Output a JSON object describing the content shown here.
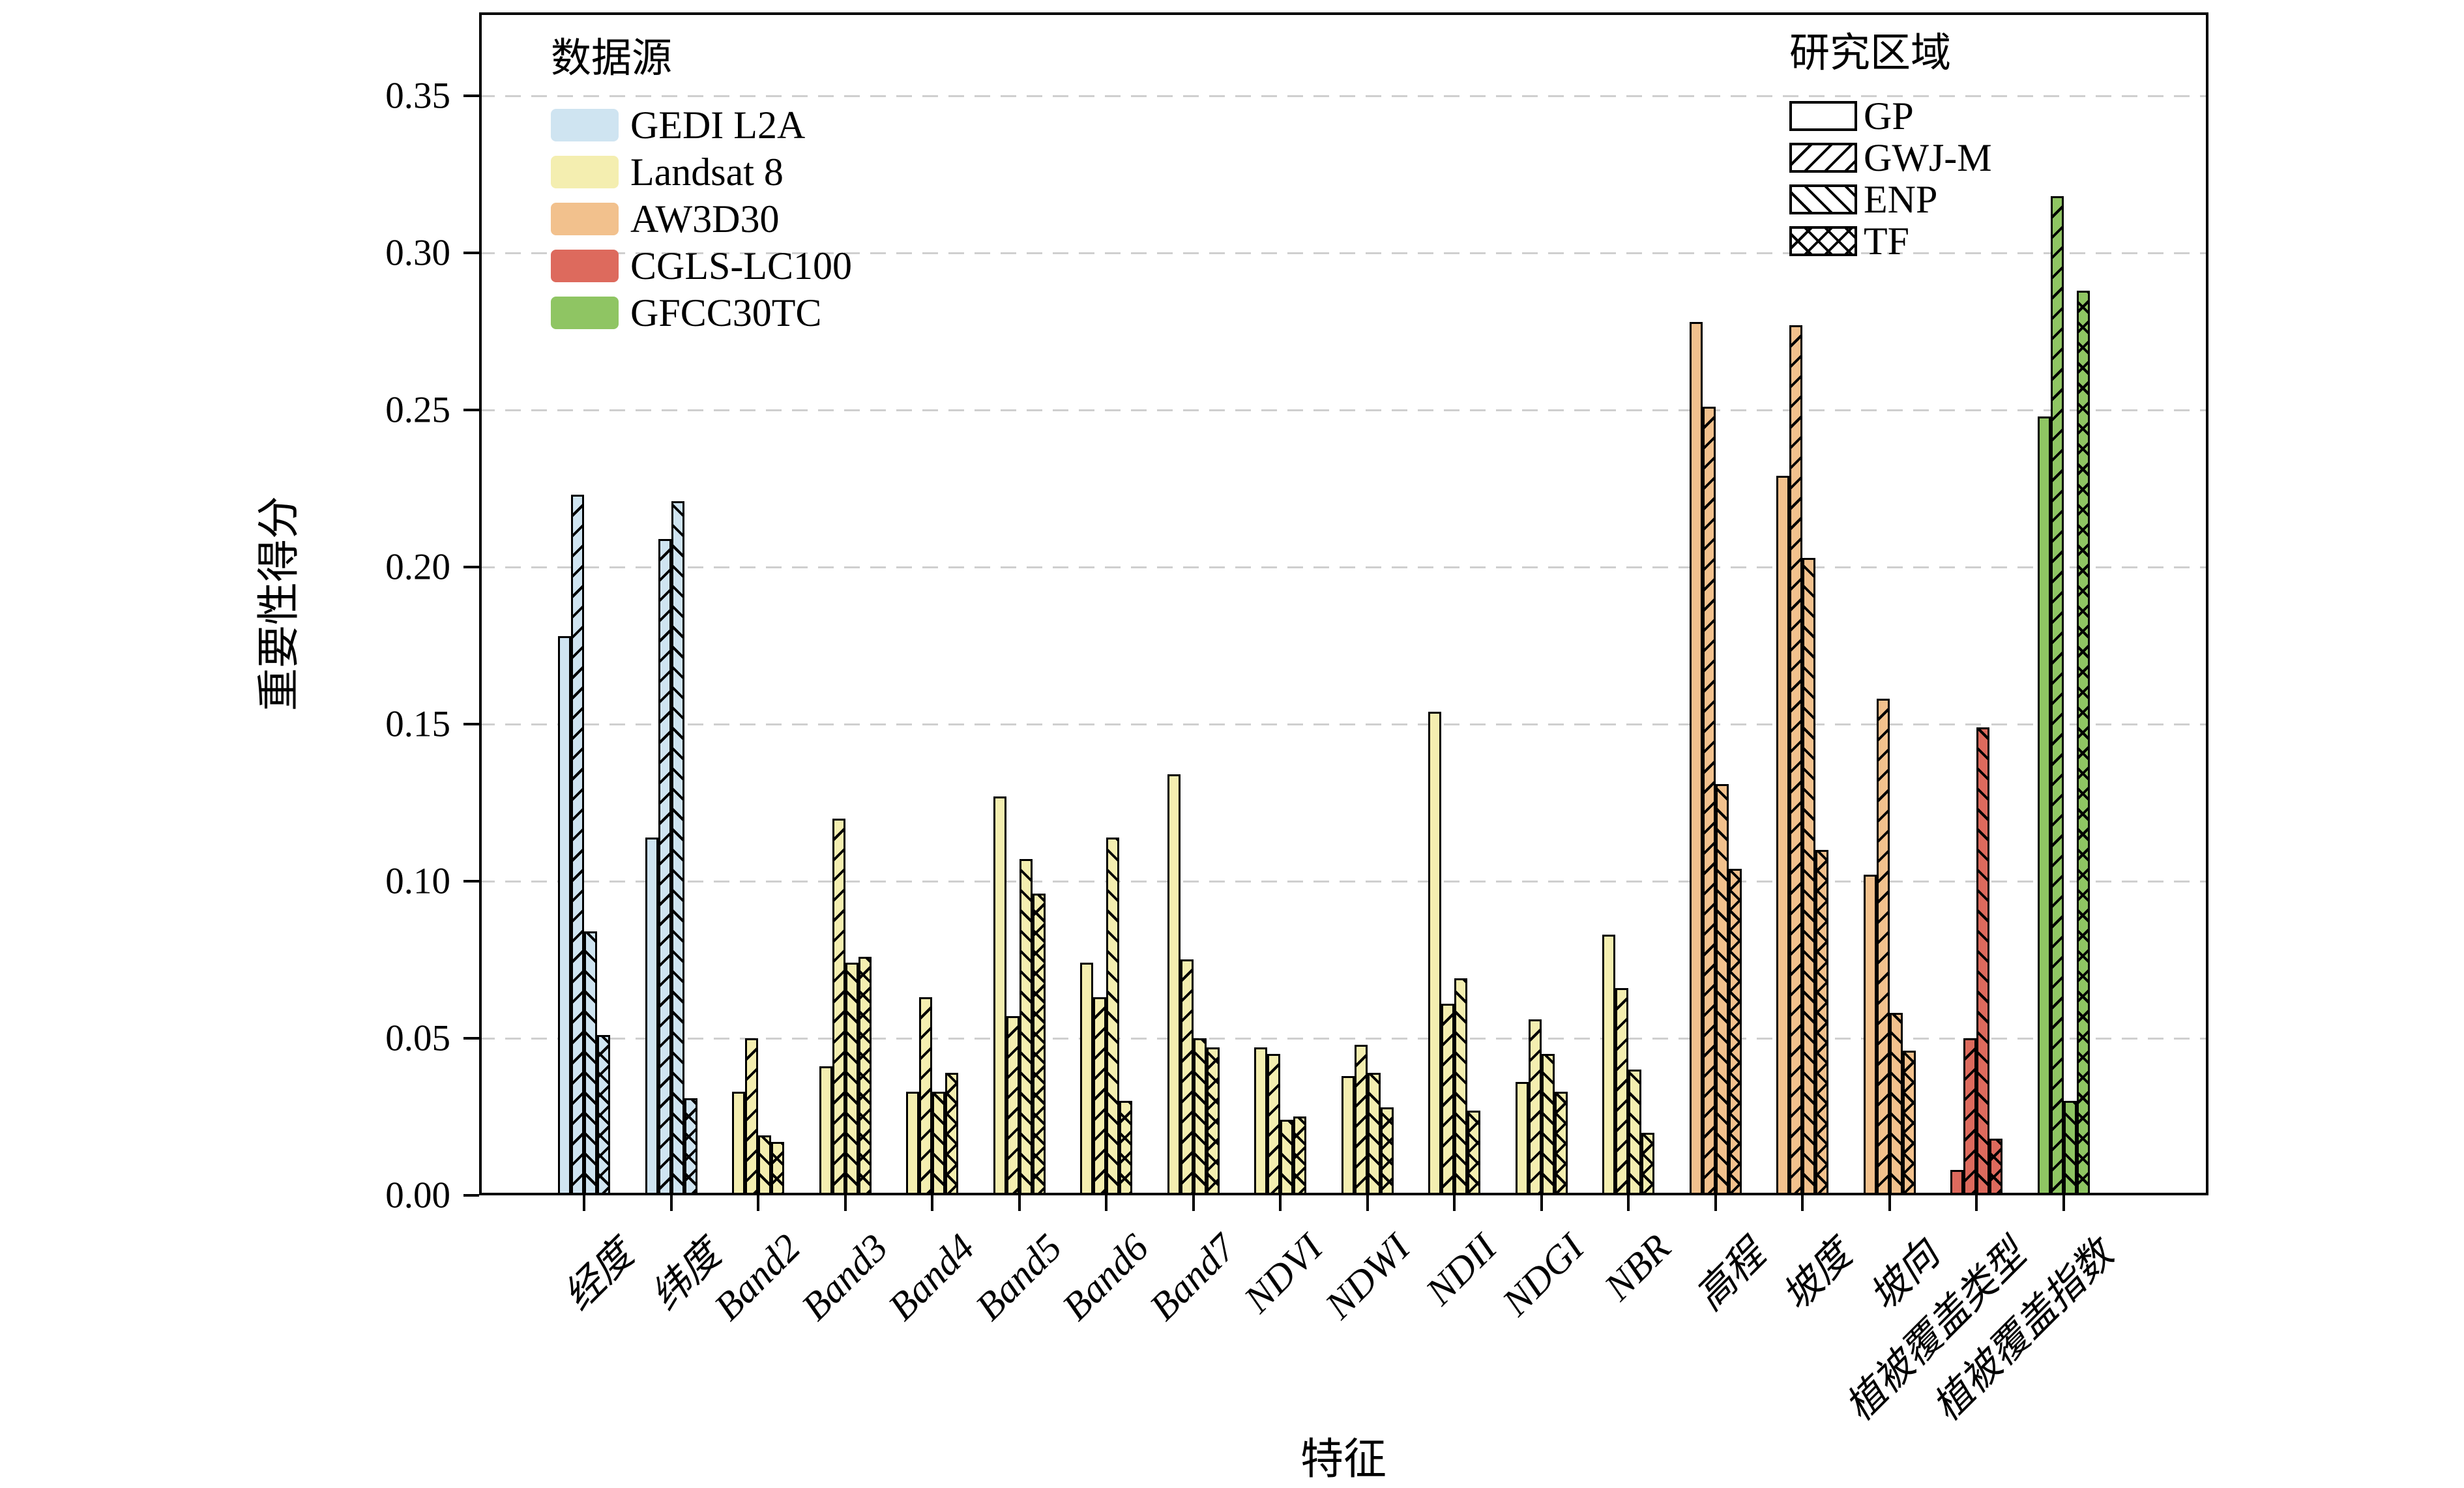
{
  "chart_data": {
    "type": "bar",
    "title": "",
    "xlabel": "特征",
    "ylabel": "重要性得分",
    "ylim": [
      0,
      0.3766
    ],
    "yticks": [
      "0.00",
      "0.05",
      "0.10",
      "0.15",
      "0.20",
      "0.25",
      "0.30",
      "0.35"
    ],
    "grid": "horizontal-dashed",
    "categories": [
      "经度",
      "纬度",
      "Band2",
      "Band3",
      "Band4",
      "Band5",
      "Band6",
      "Band7",
      "NDVI",
      "NDWI",
      "NDII",
      "NDGI",
      "NBR",
      "高程",
      "坡度",
      "坡向",
      "植被覆盖类型",
      "植被覆盖指数"
    ],
    "category_source": [
      "GEDI L2A",
      "GEDI L2A",
      "Landsat 8",
      "Landsat 8",
      "Landsat 8",
      "Landsat 8",
      "Landsat 8",
      "Landsat 8",
      "Landsat 8",
      "Landsat 8",
      "Landsat 8",
      "Landsat 8",
      "Landsat 8",
      "AW3D30",
      "AW3D30",
      "AW3D30",
      "CGLS-LC100",
      "GFCC30TC"
    ],
    "sources": [
      {
        "name": "GEDI L2A",
        "color": "#cfe4f1"
      },
      {
        "name": "Landsat 8",
        "color": "#f4eeb0"
      },
      {
        "name": "AW3D30",
        "color": "#f2c18d"
      },
      {
        "name": "CGLS-LC100",
        "color": "#dd6a5d"
      },
      {
        "name": "GFCC30TC",
        "color": "#8fc563"
      }
    ],
    "series": [
      {
        "name": "GP",
        "hatch": "none",
        "values": [
          0.178,
          0.114,
          0.033,
          0.041,
          0.033,
          0.127,
          0.074,
          0.134,
          0.047,
          0.038,
          0.154,
          0.036,
          0.083,
          0.278,
          0.229,
          0.102,
          0.008,
          0.248
        ]
      },
      {
        "name": "GWJ-M",
        "hatch": "/",
        "values": [
          0.223,
          0.209,
          0.05,
          0.12,
          0.063,
          0.057,
          0.063,
          0.075,
          0.045,
          0.048,
          0.061,
          0.056,
          0.066,
          0.251,
          0.277,
          0.158,
          0.05,
          0.318
        ]
      },
      {
        "name": "ENP",
        "hatch": "\\",
        "values": [
          0.084,
          0.221,
          0.019,
          0.074,
          0.033,
          0.107,
          0.114,
          0.05,
          0.024,
          0.039,
          0.069,
          0.045,
          0.04,
          0.131,
          0.203,
          0.058,
          0.149,
          0.03
        ]
      },
      {
        "name": "TF",
        "hatch": "x",
        "values": [
          0.051,
          0.031,
          0.017,
          0.076,
          0.039,
          0.096,
          0.03,
          0.047,
          0.025,
          0.028,
          0.027,
          0.033,
          0.02,
          0.104,
          0.11,
          0.046,
          0.018,
          0.288
        ]
      }
    ],
    "legend_source_title": "数据源",
    "legend_region_title": "研究区域",
    "axis_color": "#000000",
    "gridline_color": "#cfcfcf",
    "background_color": "#ffffff"
  }
}
